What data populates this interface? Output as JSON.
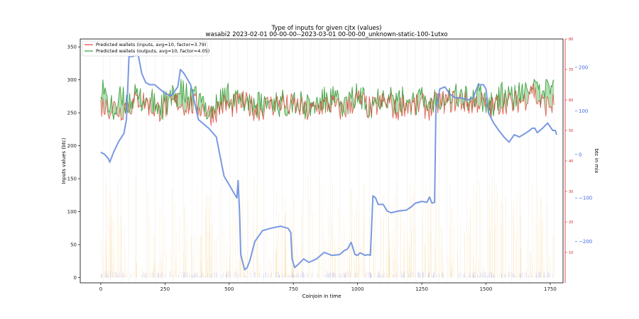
{
  "chart_data": {
    "type": "line",
    "title": "Type of inputs for given cjtx (values)",
    "subtitle": "wasabi2 2023-02-01 00-00-00--2023-03-01 00-00-00_unknown-static-100-1utxo",
    "xlabel": "Coinjoin in time",
    "ylabel": "Inputs values (btc)",
    "y2label": "btc in mix",
    "xlim": [
      -80,
      1800
    ],
    "ylim": [
      -8,
      362
    ],
    "y2lim": [
      -295,
      265
    ],
    "x_ticks": [
      0,
      250,
      500,
      750,
      1000,
      1250,
      1500,
      1750
    ],
    "y_ticks": [
      0,
      50,
      100,
      150,
      200,
      250,
      300,
      350
    ],
    "y2_ticks": [
      -200,
      -100,
      0,
      100,
      200
    ],
    "red_axis_ticks": [
      10,
      20,
      30,
      40,
      50,
      60,
      70,
      80
    ],
    "red_axis_range": [
      0,
      80
    ],
    "legend_position": "top-left",
    "grid_x": true,
    "series": [
      {
        "name": "Predicted wallets (inputs, avg=10, factor=3.79)",
        "color": "#e8443a",
        "axis": "left",
        "points": [
          [
            0,
            262
          ],
          [
            25,
            258
          ],
          [
            50,
            260
          ],
          [
            75,
            252
          ],
          [
            100,
            263
          ],
          [
            125,
            262
          ],
          [
            150,
            272
          ],
          [
            175,
            266
          ],
          [
            200,
            257
          ],
          [
            225,
            254
          ],
          [
            250,
            257
          ],
          [
            275,
            263
          ],
          [
            300,
            267
          ],
          [
            325,
            262
          ],
          [
            350,
            262
          ],
          [
            375,
            260
          ],
          [
            400,
            257
          ],
          [
            425,
            248
          ],
          [
            450,
            254
          ],
          [
            475,
            262
          ],
          [
            500,
            260
          ],
          [
            525,
            261
          ],
          [
            550,
            266
          ],
          [
            575,
            261
          ],
          [
            600,
            256
          ],
          [
            625,
            255
          ],
          [
            650,
            262
          ],
          [
            675,
            262
          ],
          [
            700,
            266
          ],
          [
            725,
            260
          ],
          [
            750,
            262
          ],
          [
            775,
            258
          ],
          [
            800,
            251
          ],
          [
            825,
            253
          ],
          [
            850,
            260
          ],
          [
            875,
            262
          ],
          [
            900,
            263
          ],
          [
            925,
            255
          ],
          [
            950,
            255
          ],
          [
            975,
            264
          ],
          [
            1000,
            270
          ],
          [
            1025,
            264
          ],
          [
            1050,
            255
          ],
          [
            1075,
            261
          ],
          [
            1100,
            265
          ],
          [
            1125,
            266
          ],
          [
            1150,
            251
          ],
          [
            1175,
            263
          ],
          [
            1200,
            264
          ],
          [
            1225,
            259
          ],
          [
            1250,
            262
          ],
          [
            1275,
            256
          ],
          [
            1300,
            262
          ],
          [
            1325,
            267
          ],
          [
            1350,
            267
          ],
          [
            1375,
            268
          ],
          [
            1400,
            268
          ],
          [
            1425,
            264
          ],
          [
            1450,
            264
          ],
          [
            1475,
            268
          ],
          [
            1500,
            260
          ],
          [
            1525,
            257
          ],
          [
            1550,
            264
          ],
          [
            1575,
            268
          ],
          [
            1600,
            262
          ],
          [
            1625,
            268
          ],
          [
            1650,
            268
          ],
          [
            1675,
            292
          ],
          [
            1700,
            270
          ],
          [
            1725,
            262
          ],
          [
            1750,
            262
          ],
          [
            1765,
            262
          ]
        ]
      },
      {
        "name": "Predicted wallets (outputs, avg=10, factor=4.05)",
        "color": "#3a9d3a",
        "axis": "left",
        "points": [
          [
            0,
            296
          ],
          [
            25,
            268
          ],
          [
            50,
            250
          ],
          [
            75,
            270
          ],
          [
            100,
            265
          ],
          [
            125,
            273
          ],
          [
            150,
            270
          ],
          [
            175,
            270
          ],
          [
            200,
            264
          ],
          [
            225,
            260
          ],
          [
            250,
            262
          ],
          [
            275,
            268
          ],
          [
            300,
            282
          ],
          [
            325,
            278
          ],
          [
            350,
            268
          ],
          [
            375,
            270
          ],
          [
            400,
            262
          ],
          [
            425,
            252
          ],
          [
            450,
            260
          ],
          [
            475,
            272
          ],
          [
            500,
            278
          ],
          [
            525,
            268
          ],
          [
            550,
            264
          ],
          [
            575,
            270
          ],
          [
            600,
            264
          ],
          [
            625,
            260
          ],
          [
            650,
            266
          ],
          [
            675,
            270
          ],
          [
            700,
            262
          ],
          [
            725,
            266
          ],
          [
            750,
            270
          ],
          [
            775,
            262
          ],
          [
            800,
            258
          ],
          [
            825,
            260
          ],
          [
            850,
            266
          ],
          [
            875,
            268
          ],
          [
            900,
            272
          ],
          [
            925,
            262
          ],
          [
            950,
            262
          ],
          [
            975,
            268
          ],
          [
            1000,
            276
          ],
          [
            1025,
            268
          ],
          [
            1050,
            262
          ],
          [
            1075,
            272
          ],
          [
            1100,
            278
          ],
          [
            1125,
            278
          ],
          [
            1150,
            262
          ],
          [
            1175,
            268
          ],
          [
            1200,
            270
          ],
          [
            1225,
            266
          ],
          [
            1250,
            270
          ],
          [
            1275,
            264
          ],
          [
            1300,
            270
          ],
          [
            1325,
            278
          ],
          [
            1350,
            276
          ],
          [
            1375,
            276
          ],
          [
            1400,
            276
          ],
          [
            1425,
            270
          ],
          [
            1450,
            270
          ],
          [
            1475,
            276
          ],
          [
            1500,
            268
          ],
          [
            1525,
            264
          ],
          [
            1550,
            272
          ],
          [
            1575,
            278
          ],
          [
            1600,
            270
          ],
          [
            1625,
            278
          ],
          [
            1650,
            276
          ],
          [
            1675,
            302
          ],
          [
            1700,
            278
          ],
          [
            1725,
            268
          ],
          [
            1750,
            300
          ],
          [
            1765,
            300
          ]
        ]
      },
      {
        "name": "",
        "color": "#6a8ee0",
        "axis": "right",
        "points": [
          [
            0,
            5
          ],
          [
            15,
            0
          ],
          [
            30,
            -10
          ],
          [
            35,
            -18
          ],
          [
            50,
            5
          ],
          [
            70,
            30
          ],
          [
            90,
            48
          ],
          [
            100,
            80
          ],
          [
            110,
            225
          ],
          [
            125,
            225
          ],
          [
            145,
            230
          ],
          [
            160,
            185
          ],
          [
            175,
            165
          ],
          [
            190,
            160
          ],
          [
            210,
            160
          ],
          [
            230,
            150
          ],
          [
            250,
            140
          ],
          [
            275,
            135
          ],
          [
            300,
            155
          ],
          [
            310,
            195
          ],
          [
            325,
            185
          ],
          [
            340,
            170
          ],
          [
            350,
            160
          ],
          [
            365,
            120
          ],
          [
            380,
            80
          ],
          [
            400,
            70
          ],
          [
            420,
            60
          ],
          [
            450,
            40
          ],
          [
            470,
            -20
          ],
          [
            480,
            -50
          ],
          [
            500,
            -70
          ],
          [
            520,
            -90
          ],
          [
            530,
            -100
          ],
          [
            535,
            -60
          ],
          [
            540,
            -130
          ],
          [
            545,
            -230
          ],
          [
            560,
            -265
          ],
          [
            570,
            -260
          ],
          [
            580,
            -245
          ],
          [
            600,
            -200
          ],
          [
            630,
            -175
          ],
          [
            660,
            -170
          ],
          [
            700,
            -165
          ],
          [
            730,
            -170
          ],
          [
            740,
            -180
          ],
          [
            745,
            -240
          ],
          [
            755,
            -260
          ],
          [
            770,
            -252
          ],
          [
            790,
            -240
          ],
          [
            810,
            -248
          ],
          [
            840,
            -240
          ],
          [
            870,
            -225
          ],
          [
            900,
            -232
          ],
          [
            930,
            -230
          ],
          [
            950,
            -220
          ],
          [
            960,
            -218
          ],
          [
            975,
            -202
          ],
          [
            990,
            -230
          ],
          [
            1000,
            -232
          ],
          [
            1010,
            -226
          ],
          [
            1030,
            -232
          ],
          [
            1040,
            -230
          ],
          [
            1050,
            -232
          ],
          [
            1060,
            -95
          ],
          [
            1070,
            -100
          ],
          [
            1080,
            -115
          ],
          [
            1100,
            -115
          ],
          [
            1115,
            -130
          ],
          [
            1130,
            -134
          ],
          [
            1160,
            -130
          ],
          [
            1190,
            -128
          ],
          [
            1210,
            -120
          ],
          [
            1225,
            -112
          ],
          [
            1250,
            -108
          ],
          [
            1270,
            -110
          ],
          [
            1280,
            -98
          ],
          [
            1290,
            -112
          ],
          [
            1300,
            -110
          ],
          [
            1305,
            105
          ],
          [
            1320,
            150
          ],
          [
            1340,
            155
          ],
          [
            1360,
            138
          ],
          [
            1380,
            130
          ],
          [
            1400,
            130
          ],
          [
            1430,
            125
          ],
          [
            1450,
            130
          ],
          [
            1470,
            160
          ],
          [
            1490,
            160
          ],
          [
            1500,
            150
          ],
          [
            1510,
            95
          ],
          [
            1530,
            72
          ],
          [
            1550,
            55
          ],
          [
            1570,
            40
          ],
          [
            1590,
            28
          ],
          [
            1610,
            45
          ],
          [
            1630,
            40
          ],
          [
            1650,
            47
          ],
          [
            1670,
            55
          ],
          [
            1680,
            60
          ],
          [
            1690,
            60
          ],
          [
            1700,
            50
          ],
          [
            1720,
            60
          ],
          [
            1740,
            72
          ],
          [
            1760,
            55
          ],
          [
            1770,
            55
          ],
          [
            1775,
            45
          ]
        ]
      }
    ]
  }
}
